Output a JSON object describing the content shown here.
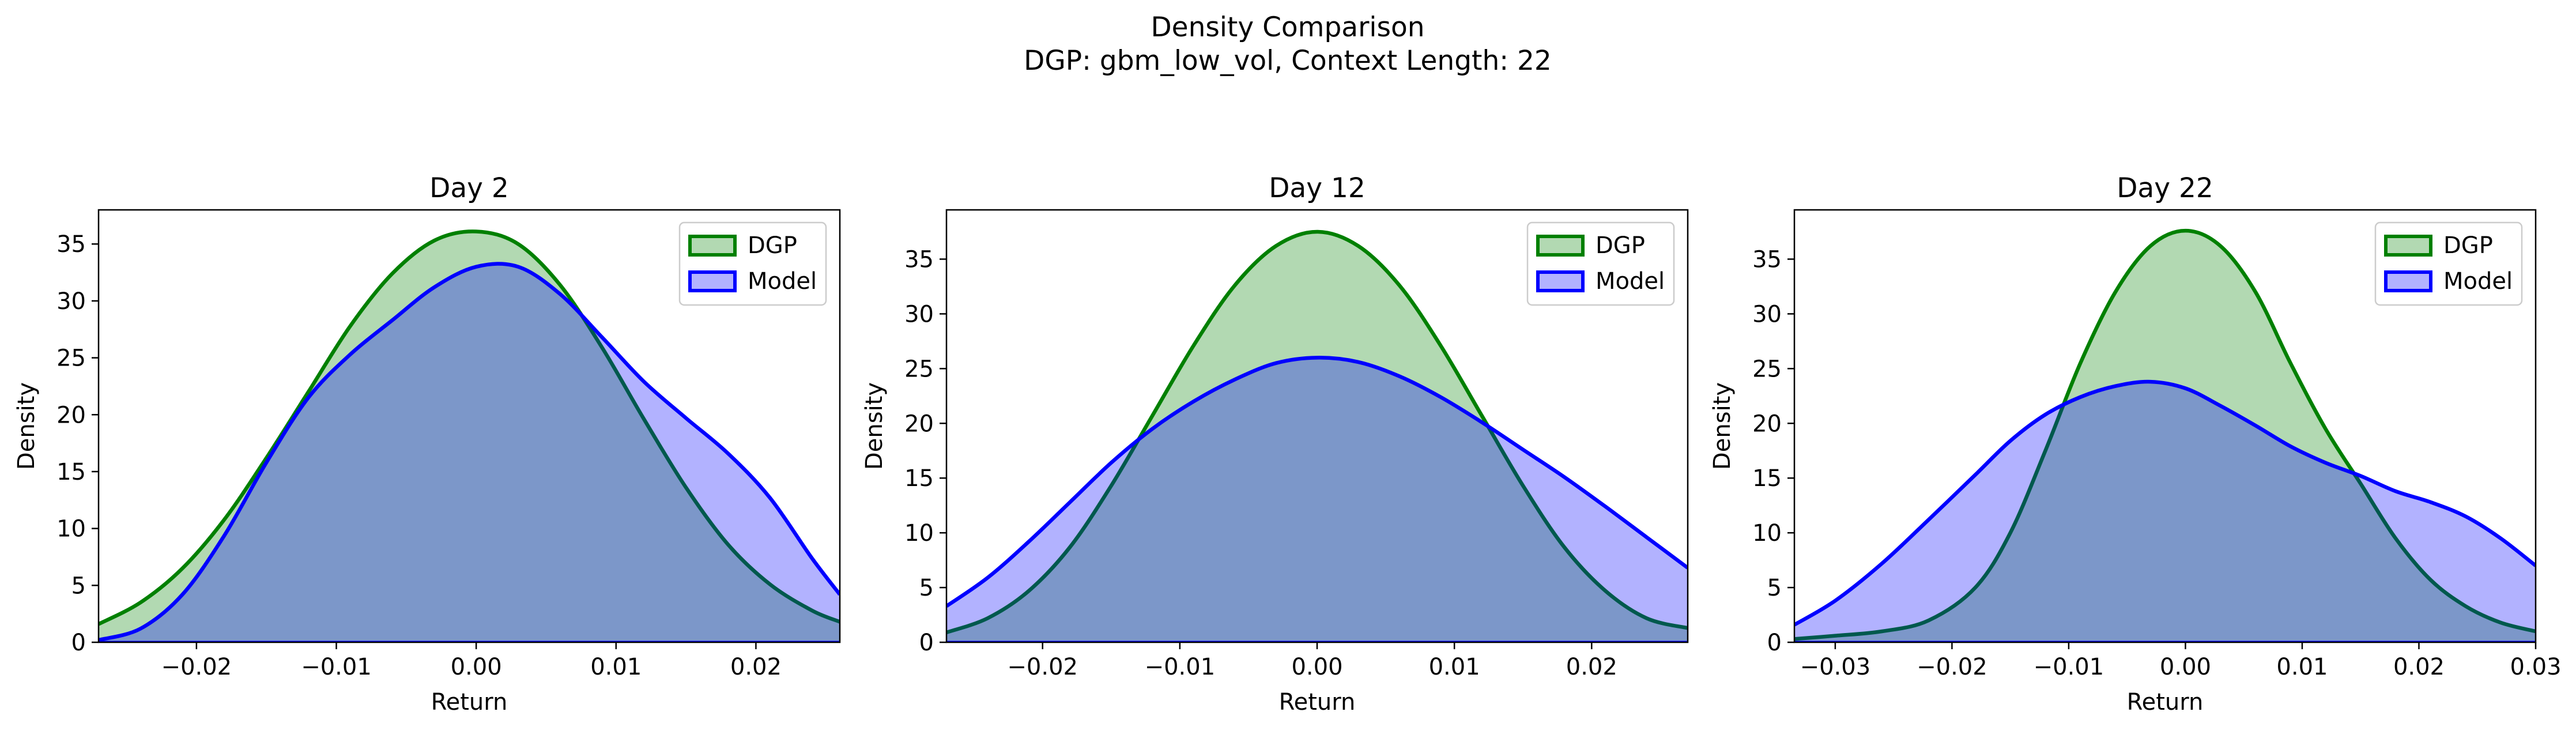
{
  "figure": {
    "suptitle": [
      "Density Comparison",
      "DGP: gbm_low_vol, Context Length: 22"
    ]
  },
  "colors": {
    "dgp_line": "#008000",
    "dgp_fill": "#008000",
    "model_line": "#0000ff",
    "model_fill": "#0000ff"
  },
  "chart_data": [
    {
      "type": "area",
      "title": "Day 2",
      "xlabel": "Return",
      "ylabel": "Density",
      "xlim": [
        -0.027,
        0.026
      ],
      "ylim": [
        0,
        38
      ],
      "xticks": [
        -0.02,
        -0.01,
        0.0,
        0.01,
        0.02
      ],
      "xtick_labels": [
        "−0.02",
        "−0.01",
        "0.00",
        "0.01",
        "0.02"
      ],
      "yticks": [
        0,
        5,
        10,
        15,
        20,
        25,
        30,
        35
      ],
      "ytick_labels": [
        "0",
        "5",
        "10",
        "15",
        "20",
        "25",
        "30",
        "35"
      ],
      "legend": {
        "placement": "top-right",
        "entries": [
          "DGP",
          "Model"
        ]
      },
      "grid": false,
      "series": [
        {
          "name": "DGP",
          "x": [
            -0.027,
            -0.024,
            -0.021,
            -0.018,
            -0.015,
            -0.012,
            -0.009,
            -0.006,
            -0.003,
            0.0,
            0.003,
            0.006,
            0.009,
            0.012,
            0.015,
            0.018,
            0.021,
            0.024,
            0.026
          ],
          "y": [
            1.6,
            3.5,
            6.5,
            10.8,
            16.2,
            22.0,
            27.8,
            32.4,
            35.3,
            36.1,
            35.0,
            31.4,
            25.9,
            19.6,
            13.6,
            8.6,
            5.1,
            2.8,
            1.8
          ]
        },
        {
          "name": "Model",
          "x": [
            -0.027,
            -0.024,
            -0.021,
            -0.018,
            -0.015,
            -0.012,
            -0.009,
            -0.006,
            -0.003,
            0.0,
            0.003,
            0.006,
            0.009,
            0.012,
            0.015,
            0.018,
            0.021,
            0.024,
            0.026
          ],
          "y": [
            0.2,
            1.2,
            4.2,
            9.4,
            15.8,
            21.5,
            25.3,
            28.3,
            31.2,
            33.0,
            33.0,
            30.6,
            26.8,
            22.9,
            19.7,
            16.6,
            12.7,
            7.4,
            4.2
          ]
        }
      ]
    },
    {
      "type": "area",
      "title": "Day 12",
      "xlabel": "Return",
      "ylabel": "Density",
      "xlim": [
        -0.027,
        0.027
      ],
      "ylim": [
        0,
        39.5
      ],
      "xticks": [
        -0.02,
        -0.01,
        0.0,
        0.01,
        0.02
      ],
      "xtick_labels": [
        "−0.02",
        "−0.01",
        "0.00",
        "0.01",
        "0.02"
      ],
      "yticks": [
        0,
        5,
        10,
        15,
        20,
        25,
        30,
        35
      ],
      "ytick_labels": [
        "0",
        "5",
        "10",
        "15",
        "20",
        "25",
        "30",
        "35"
      ],
      "legend": {
        "placement": "top-right",
        "entries": [
          "DGP",
          "Model"
        ]
      },
      "grid": false,
      "series": [
        {
          "name": "DGP",
          "x": [
            -0.027,
            -0.024,
            -0.021,
            -0.018,
            -0.015,
            -0.012,
            -0.009,
            -0.006,
            -0.003,
            0.0,
            0.003,
            0.006,
            0.009,
            0.012,
            0.015,
            0.018,
            0.021,
            0.024,
            0.027
          ],
          "y": [
            0.9,
            2.2,
            4.7,
            8.7,
            14.3,
            20.7,
            27.1,
            32.6,
            36.2,
            37.5,
            36.2,
            32.6,
            27.1,
            20.7,
            14.3,
            8.7,
            4.7,
            2.2,
            1.3
          ]
        },
        {
          "name": "Model",
          "x": [
            -0.027,
            -0.024,
            -0.021,
            -0.018,
            -0.015,
            -0.012,
            -0.009,
            -0.006,
            -0.003,
            0.0,
            0.003,
            0.006,
            0.009,
            0.012,
            0.015,
            0.018,
            0.021,
            0.024,
            0.027
          ],
          "y": [
            3.3,
            5.9,
            9.2,
            12.8,
            16.4,
            19.5,
            22.0,
            24.0,
            25.5,
            26.0,
            25.6,
            24.3,
            22.4,
            20.1,
            17.6,
            15.1,
            12.4,
            9.6,
            6.8
          ]
        }
      ]
    },
    {
      "type": "area",
      "title": "Day 22",
      "xlabel": "Return",
      "ylabel": "Density",
      "xlim": [
        -0.0335,
        0.03
      ],
      "ylim": [
        0,
        39.5
      ],
      "xticks": [
        -0.03,
        -0.02,
        -0.01,
        0.0,
        0.01,
        0.02,
        0.03
      ],
      "xtick_labels": [
        "−0.03",
        "−0.02",
        "−0.01",
        "0.00",
        "0.01",
        "0.02",
        "0.03"
      ],
      "yticks": [
        0,
        5,
        10,
        15,
        20,
        25,
        30,
        35
      ],
      "ytick_labels": [
        "0",
        "5",
        "10",
        "15",
        "20",
        "25",
        "30",
        "35"
      ],
      "legend": {
        "placement": "top-right",
        "entries": [
          "DGP",
          "Model"
        ]
      },
      "grid": false,
      "series": [
        {
          "name": "DGP",
          "x": [
            -0.0335,
            -0.03,
            -0.026,
            -0.022,
            -0.018,
            -0.015,
            -0.012,
            -0.009,
            -0.006,
            -0.003,
            0.0,
            0.003,
            0.006,
            0.009,
            0.012,
            0.015,
            0.018,
            0.021,
            0.024,
            0.027,
            0.03
          ],
          "y": [
            0.3,
            0.6,
            1.0,
            2.0,
            5.0,
            10.0,
            17.5,
            25.5,
            32.0,
            36.2,
            37.6,
            36.2,
            32.0,
            25.5,
            19.5,
            14.5,
            9.5,
            5.7,
            3.3,
            1.8,
            1.0
          ]
        },
        {
          "name": "Model",
          "x": [
            -0.0335,
            -0.03,
            -0.026,
            -0.022,
            -0.018,
            -0.015,
            -0.012,
            -0.009,
            -0.006,
            -0.003,
            0.0,
            0.003,
            0.006,
            0.009,
            0.012,
            0.015,
            0.018,
            0.021,
            0.024,
            0.027,
            0.03
          ],
          "y": [
            1.6,
            3.8,
            7.2,
            11.2,
            15.3,
            18.4,
            20.8,
            22.4,
            23.4,
            23.8,
            23.2,
            21.6,
            19.8,
            17.9,
            16.4,
            15.2,
            13.8,
            12.8,
            11.5,
            9.5,
            7.0
          ]
        }
      ]
    }
  ]
}
